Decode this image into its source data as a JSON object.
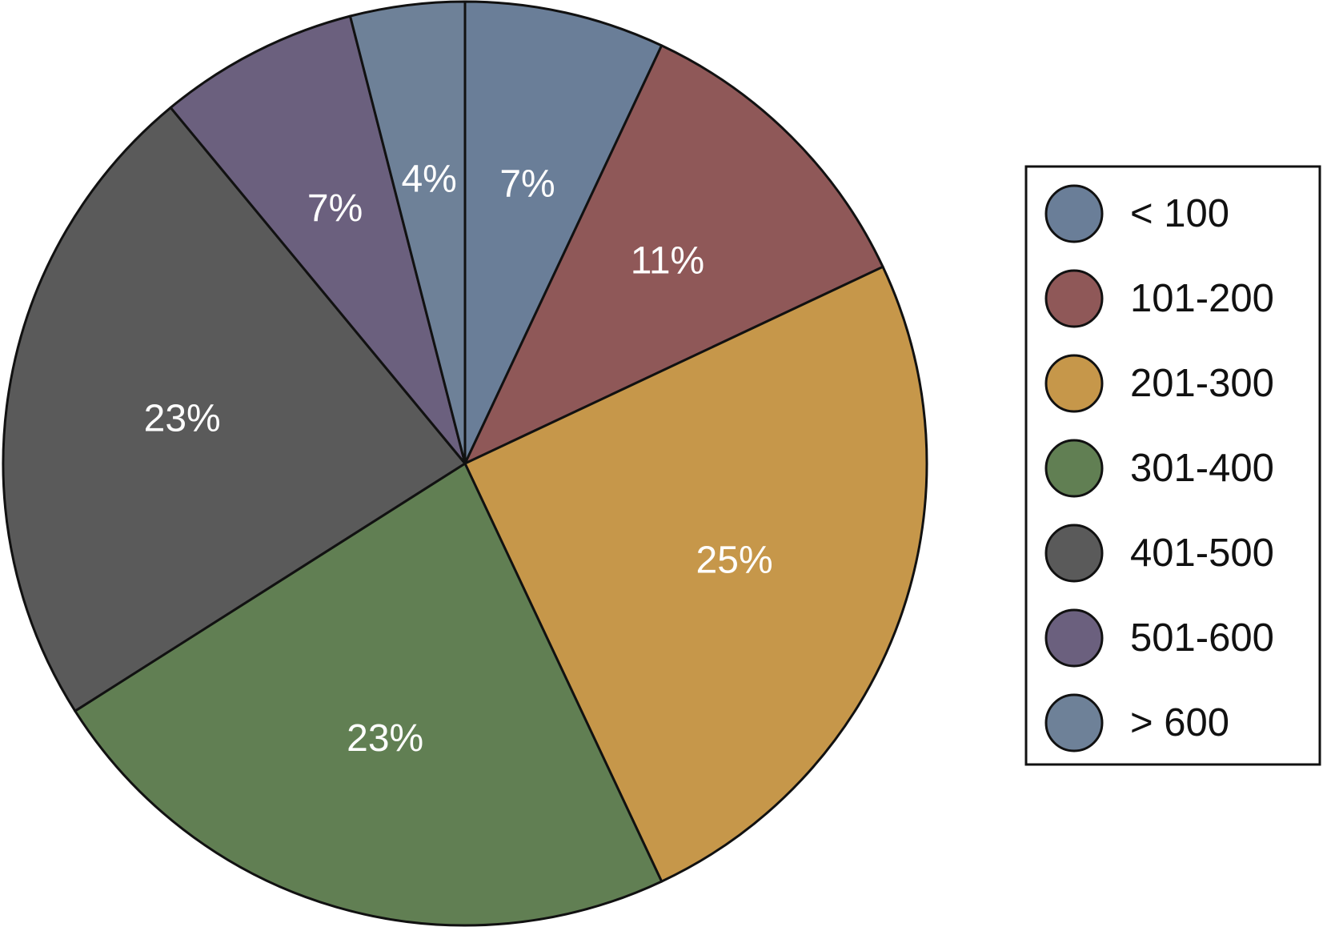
{
  "chart_data": {
    "type": "pie",
    "title": "",
    "legend_position": "right",
    "slices": [
      {
        "label": "< 100",
        "value": 7,
        "display": "7%",
        "color": "#6A7E98"
      },
      {
        "label": "101-200",
        "value": 11,
        "display": "11%",
        "color": "#8F5858"
      },
      {
        "label": "201-300",
        "value": 25,
        "display": "25%",
        "color": "#C6974A"
      },
      {
        "label": "301-400",
        "value": 23,
        "display": "23%",
        "color": "#617F53"
      },
      {
        "label": "401-500",
        "value": 23,
        "display": "23%",
        "color": "#5A5A5A"
      },
      {
        "label": "501-600",
        "value": 7,
        "display": "7%",
        "color": "#6B607E"
      },
      {
        "label": "> 600",
        "value": 4,
        "display": "4%",
        "color": "#6E8198"
      }
    ]
  }
}
